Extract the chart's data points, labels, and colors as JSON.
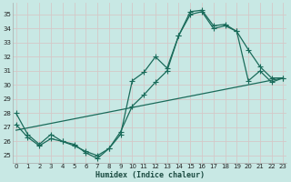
{
  "xlabel": "Humidex (Indice chaleur)",
  "bg_color": "#c8e8e4",
  "grid_color": "#b0d8d4",
  "line_color": "#1a6b5a",
  "xlim": [
    -0.3,
    23.3
  ],
  "ylim": [
    24.5,
    35.8
  ],
  "xticks": [
    0,
    1,
    2,
    3,
    4,
    5,
    6,
    7,
    8,
    9,
    10,
    11,
    12,
    13,
    14,
    15,
    16,
    17,
    18,
    19,
    20,
    21,
    22,
    23
  ],
  "yticks": [
    25,
    26,
    27,
    28,
    29,
    30,
    31,
    32,
    33,
    34,
    35
  ],
  "line1_x": [
    0,
    1,
    2,
    3,
    4,
    5,
    6,
    7,
    8,
    9,
    10,
    11,
    12,
    13,
    14,
    15,
    16,
    17,
    18,
    19,
    20,
    21,
    22,
    23
  ],
  "line1_y": [
    28.0,
    26.5,
    25.8,
    26.5,
    26.0,
    25.8,
    25.2,
    24.8,
    25.5,
    26.5,
    30.3,
    30.9,
    32.0,
    31.2,
    33.5,
    35.2,
    35.3,
    34.2,
    34.3,
    33.8,
    32.5,
    31.3,
    30.5,
    30.5
  ],
  "line2_x": [
    0,
    1,
    2,
    3,
    4,
    5,
    6,
    7,
    8,
    9,
    10,
    11,
    12,
    13,
    14,
    15,
    16,
    17,
    18,
    19,
    20,
    21,
    22,
    23
  ],
  "line2_y": [
    27.2,
    26.3,
    25.7,
    26.2,
    26.0,
    25.7,
    25.3,
    25.0,
    25.5,
    26.7,
    28.5,
    29.3,
    30.2,
    31.0,
    33.5,
    35.0,
    35.2,
    34.0,
    34.2,
    33.8,
    30.3,
    31.0,
    30.2,
    30.5
  ],
  "line3_x": [
    0,
    23
  ],
  "line3_y": [
    26.8,
    30.5
  ]
}
